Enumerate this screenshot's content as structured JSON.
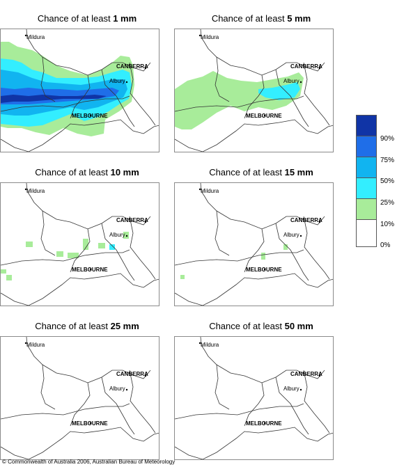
{
  "panels": [
    {
      "prefix": "Chance of at least ",
      "amount": "1 mm"
    },
    {
      "prefix": "Chance of at least ",
      "amount": "5 mm"
    },
    {
      "prefix": "Chance of at least ",
      "amount": "10 mm"
    },
    {
      "prefix": "Chance of at least ",
      "amount": "15 mm"
    },
    {
      "prefix": "Chance of at least ",
      "amount": "25 mm"
    },
    {
      "prefix": "Chance of at least ",
      "amount": "50 mm"
    }
  ],
  "places": {
    "mildura": "Mildura",
    "canberra": "CANBERRA",
    "albury": "Albury",
    "melbourne": "MELBOURNE"
  },
  "legend": {
    "labels": [
      "90%",
      "75%",
      "50%",
      "25%",
      "10%",
      "0%"
    ],
    "colors": [
      "#1034a6",
      "#1f6ee8",
      "#11b4f0",
      "#33eeff",
      "#a8ec9a",
      "#ffffff"
    ]
  },
  "copyright": "© Commonwealth of Australia 2006, Australian Bureau of Meteorology"
}
